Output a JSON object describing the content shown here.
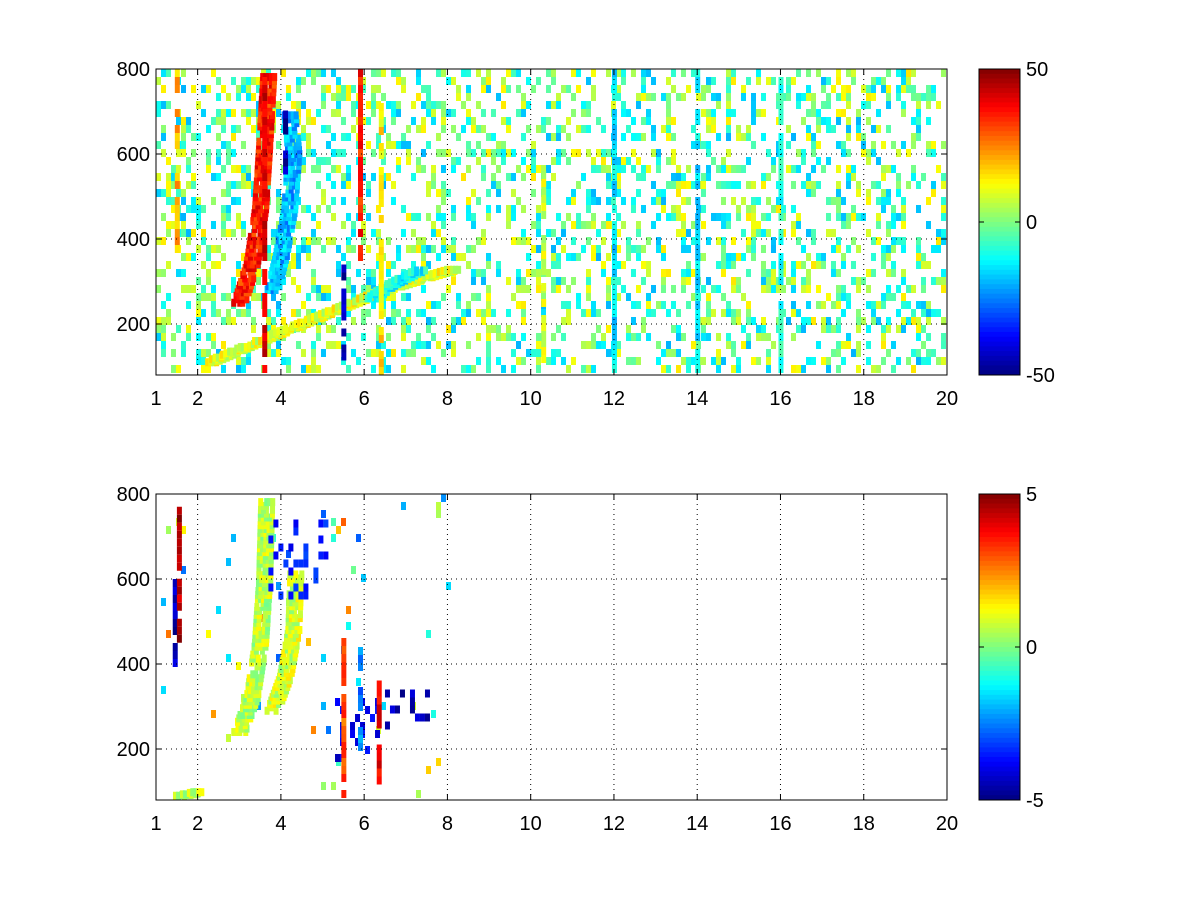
{
  "chart_data": [
    {
      "type": "heatmap",
      "title": "",
      "xlabel": "",
      "ylabel": "",
      "xlim": [
        1,
        20
      ],
      "ylim": [
        80,
        800
      ],
      "x_ticks": [
        1,
        2,
        4,
        6,
        8,
        10,
        12,
        14,
        16,
        18,
        20
      ],
      "y_ticks": [
        200,
        400,
        600,
        800
      ],
      "grid": true,
      "colormap": "jet",
      "colorbar": {
        "min": -50,
        "max": 50,
        "ticks": [
          50,
          0,
          -50
        ]
      },
      "features": [
        {
          "kind": "band",
          "points": [
            [
              3.0,
              250
            ],
            [
              3.3,
              340
            ],
            [
              3.5,
              470
            ],
            [
              3.6,
              620
            ],
            [
              3.7,
              790
            ]
          ],
          "value": 35
        },
        {
          "kind": "band",
          "points": [
            [
              3.8,
              280
            ],
            [
              4.0,
              360
            ],
            [
              4.2,
              470
            ],
            [
              4.3,
              600
            ],
            [
              4.2,
              700
            ]
          ],
          "value": -20
        },
        {
          "kind": "band",
          "points": [
            [
              2.3,
              110
            ],
            [
              3.5,
              160
            ],
            [
              4.5,
              200
            ],
            [
              5.5,
              240
            ],
            [
              6.5,
              280
            ],
            [
              7.5,
              310
            ],
            [
              8.2,
              330
            ]
          ],
          "value": 10
        },
        {
          "kind": "band",
          "points": [
            [
              6.2,
              260
            ],
            [
              6.6,
              290
            ],
            [
              7.0,
              310
            ],
            [
              7.4,
              330
            ]
          ],
          "value": -12
        },
        {
          "kind": "stripe",
          "x": 1.5,
          "y": [
            380,
            800
          ],
          "value": 20
        },
        {
          "kind": "stripe",
          "x": 3.6,
          "y": [
            80,
            800
          ],
          "value": 40
        },
        {
          "kind": "stripe",
          "x": 4.1,
          "y": [
            560,
            740
          ],
          "value": -45
        },
        {
          "kind": "stripe",
          "x": 5.5,
          "y": [
            80,
            340
          ],
          "value": -45
        },
        {
          "kind": "stripe",
          "x": 5.9,
          "y": [
            360,
            800
          ],
          "value": 35
        },
        {
          "kind": "stripe",
          "x": 6.4,
          "y": [
            80,
            720
          ],
          "value": 15
        },
        {
          "kind": "stripe",
          "x": 10.3,
          "y": [
            100,
            560
          ],
          "value": 8
        },
        {
          "kind": "stripe",
          "x": 12.0,
          "y": [
            100,
            800
          ],
          "value": -15
        },
        {
          "kind": "stripe",
          "x": 14.0,
          "y": [
            100,
            800
          ],
          "value": -15
        },
        {
          "kind": "stripe",
          "x": 16.0,
          "y": [
            100,
            800
          ],
          "value": -10
        }
      ],
      "background_noise": {
        "x_range": [
          1,
          20
        ],
        "density": 0.34,
        "value_range": [
          -20,
          15
        ]
      }
    },
    {
      "type": "heatmap",
      "title": "",
      "xlabel": "",
      "ylabel": "",
      "xlim": [
        1,
        20
      ],
      "ylim": [
        80,
        800
      ],
      "x_ticks": [
        1,
        2,
        4,
        6,
        8,
        10,
        12,
        14,
        16,
        18,
        20
      ],
      "y_ticks": [
        200,
        400,
        600,
        800
      ],
      "grid": true,
      "colormap": "jet",
      "colorbar": {
        "min": -5,
        "max": 5,
        "ticks": [
          5,
          0,
          -5
        ]
      },
      "features": [
        {
          "kind": "band",
          "points": [
            [
              3.0,
              240
            ],
            [
              3.3,
              320
            ],
            [
              3.5,
              450
            ],
            [
              3.6,
              600
            ],
            [
              3.65,
              790
            ]
          ],
          "value": 0.6
        },
        {
          "kind": "band",
          "points": [
            [
              3.8,
              290
            ],
            [
              4.1,
              370
            ],
            [
              4.3,
              480
            ],
            [
              4.35,
              620
            ]
          ],
          "value": 0.8
        },
        {
          "kind": "cluster",
          "x": [
            3.7,
            5.1
          ],
          "y": [
            560,
            740
          ],
          "value": -3.5
        },
        {
          "kind": "cluster",
          "x": [
            5.3,
            6.3
          ],
          "y": [
            180,
            320
          ],
          "value": -4.0
        },
        {
          "kind": "cluster",
          "x": [
            6.5,
            7.5
          ],
          "y": [
            260,
            340
          ],
          "value": -4.5
        },
        {
          "kind": "stripe",
          "x": 1.45,
          "y": [
            400,
            600
          ],
          "value": -4.5
        },
        {
          "kind": "stripe",
          "x": 1.55,
          "y": [
            460,
            770
          ],
          "value": 4.5
        },
        {
          "kind": "stripe",
          "x": 5.5,
          "y": [
            80,
            480
          ],
          "value": 3.0
        },
        {
          "kind": "stripe",
          "x": 5.9,
          "y": [
            200,
            440
          ],
          "value": -2.5
        },
        {
          "kind": "stripe",
          "x": 6.35,
          "y": [
            80,
            380
          ],
          "value": 4.0
        },
        {
          "kind": "band",
          "points": [
            [
              1.6,
              90
            ],
            [
              2.1,
              100
            ]
          ],
          "value": 0.5
        }
      ],
      "background_noise": {
        "x_range": [
          1,
          8
        ],
        "density": 0.03,
        "value_range": [
          -3,
          3
        ]
      }
    }
  ]
}
